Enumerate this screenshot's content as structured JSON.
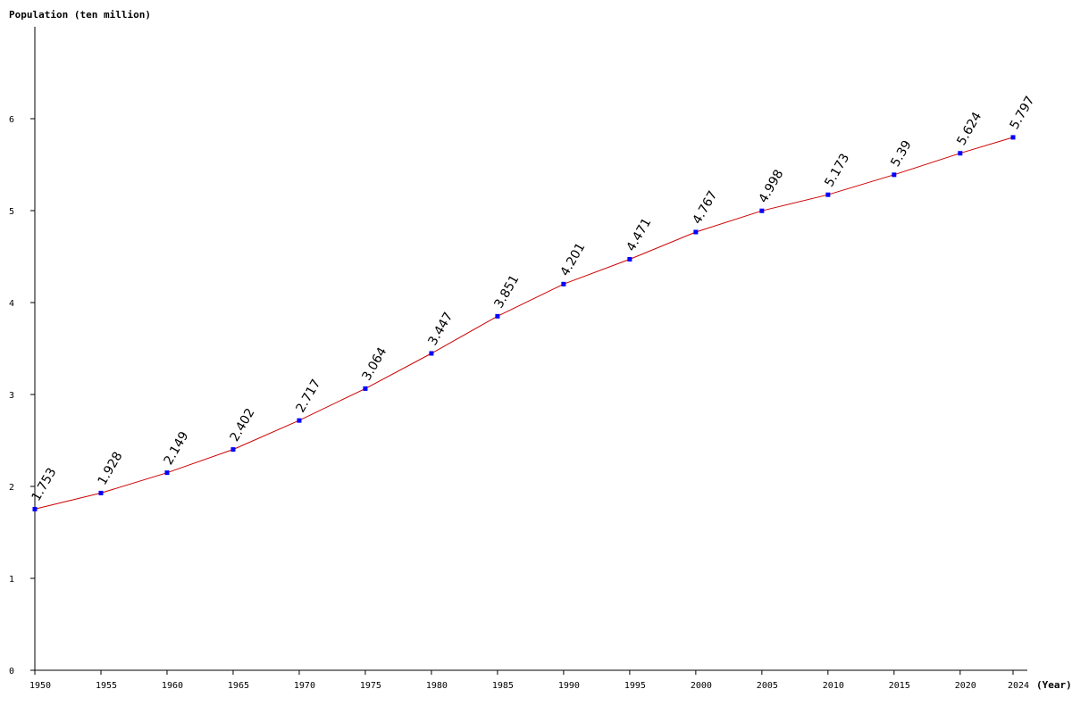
{
  "chart_data": {
    "type": "line",
    "title": "",
    "ylabel": "Population (ten million)",
    "xlabel": "(Year)",
    "ylim": [
      0,
      7
    ],
    "yticks": [
      0,
      1,
      2,
      3,
      4,
      5,
      6
    ],
    "xlim": [
      1950,
      2024
    ],
    "grid": false,
    "line_color": "#cc0000",
    "marker_color": "#0000ff",
    "series": [
      {
        "x": [
          1950,
          1955,
          1960,
          1965,
          1970,
          1975,
          1980,
          1985,
          1990,
          1995,
          2000,
          2005,
          2010,
          2015,
          2020,
          2024
        ],
        "values": [
          1.753,
          1.928,
          2.149,
          2.402,
          2.717,
          3.064,
          3.447,
          3.851,
          4.201,
          4.471,
          4.767,
          4.998,
          5.173,
          5.39,
          5.624,
          5.797
        ],
        "labels": [
          "1.753",
          "1.928",
          "2.149",
          "2.402",
          "2.717",
          "3.064",
          "3.447",
          "3.851",
          "4.201",
          "4.471",
          "4.767",
          "4.998",
          "5.173",
          "5.39",
          "5.624",
          "5.797"
        ]
      }
    ]
  }
}
